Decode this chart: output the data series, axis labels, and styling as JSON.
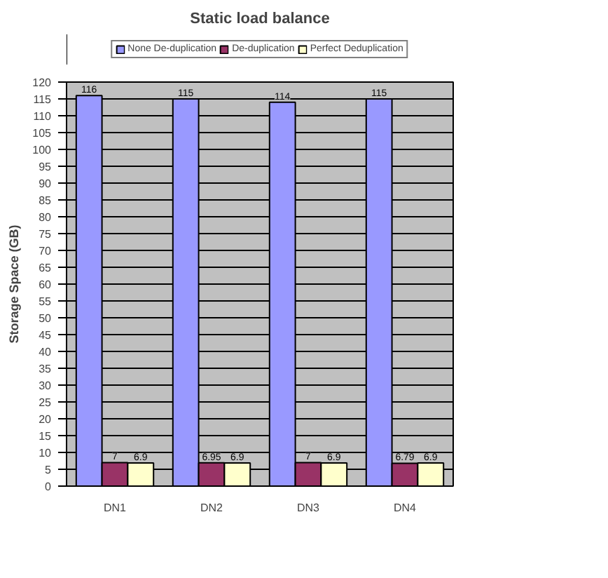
{
  "chart_data": {
    "type": "bar",
    "title": "Static load balance",
    "ylabel": "Storage Space (GB)",
    "categories": [
      "DN1",
      "DN2",
      "DN3",
      "DN4"
    ],
    "series": [
      {
        "name": "None De-duplication",
        "color": "#9999ff",
        "values": [
          116,
          115,
          114,
          115
        ]
      },
      {
        "name": "De-duplication",
        "color": "#993366",
        "values": [
          7,
          6.95,
          7,
          6.79
        ]
      },
      {
        "name": "Perfect Deduplication",
        "color": "#ffffcc",
        "values": [
          6.9,
          6.9,
          6.9,
          6.9
        ]
      }
    ],
    "ylim": [
      0,
      120
    ],
    "yticks": [
      0,
      5,
      10,
      15,
      20,
      25,
      30,
      35,
      40,
      45,
      50,
      55,
      60,
      65,
      70,
      75,
      80,
      85,
      90,
      95,
      100,
      105,
      110,
      115,
      120
    ],
    "grid": "y",
    "legend": "top",
    "data_labels": true
  }
}
